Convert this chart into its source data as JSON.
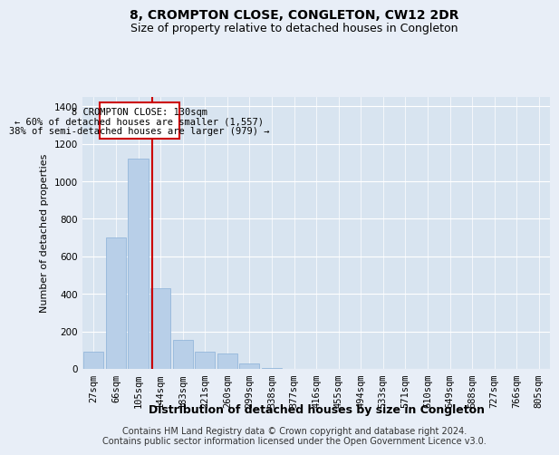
{
  "title": "8, CROMPTON CLOSE, CONGLETON, CW12 2DR",
  "subtitle": "Size of property relative to detached houses in Congleton",
  "xlabel": "Distribution of detached houses by size in Congleton",
  "ylabel": "Number of detached properties",
  "bar_labels": [
    "27sqm",
    "66sqm",
    "105sqm",
    "144sqm",
    "183sqm",
    "221sqm",
    "260sqm",
    "299sqm",
    "338sqm",
    "377sqm",
    "416sqm",
    "455sqm",
    "494sqm",
    "533sqm",
    "571sqm",
    "610sqm",
    "649sqm",
    "688sqm",
    "727sqm",
    "766sqm",
    "805sqm"
  ],
  "bar_values": [
    90,
    700,
    1120,
    430,
    155,
    90,
    80,
    30,
    5,
    0,
    0,
    0,
    0,
    0,
    0,
    0,
    0,
    0,
    0,
    0,
    0
  ],
  "bar_color": "#b8cfe8",
  "bar_edge_color": "#8ab0d8",
  "ylim": [
    0,
    1450
  ],
  "yticks": [
    0,
    200,
    400,
    600,
    800,
    1000,
    1200,
    1400
  ],
  "vline_x_index": 2.64,
  "vline_color": "#cc0000",
  "ann_line1": "8 CROMPTON CLOSE: 130sqm",
  "ann_line2": "← 60% of detached houses are smaller (1,557)",
  "ann_line3": "38% of semi-detached houses are larger (979) →",
  "footer_line1": "Contains HM Land Registry data © Crown copyright and database right 2024.",
  "footer_line2": "Contains public sector information licensed under the Open Government Licence v3.0.",
  "bg_color": "#e8eef7",
  "plot_bg_color": "#d8e4f0",
  "grid_color": "#ffffff",
  "title_fontsize": 10,
  "subtitle_fontsize": 9,
  "ylabel_fontsize": 8,
  "xlabel_fontsize": 9,
  "tick_fontsize": 7.5,
  "footer_fontsize": 7,
  "ann_fontsize": 7.5
}
